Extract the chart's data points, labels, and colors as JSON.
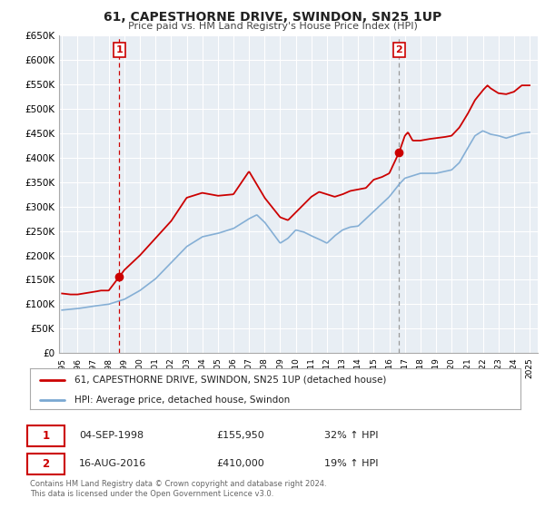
{
  "title": "61, CAPESTHORNE DRIVE, SWINDON, SN25 1UP",
  "subtitle": "Price paid vs. HM Land Registry's House Price Index (HPI)",
  "ylabel_ticks": [
    "£0",
    "£50K",
    "£100K",
    "£150K",
    "£200K",
    "£250K",
    "£300K",
    "£350K",
    "£400K",
    "£450K",
    "£500K",
    "£550K",
    "£600K",
    "£650K"
  ],
  "ytick_values": [
    0,
    50000,
    100000,
    150000,
    200000,
    250000,
    300000,
    350000,
    400000,
    450000,
    500000,
    550000,
    600000,
    650000
  ],
  "sale1_date": 1998.67,
  "sale1_price": 155950,
  "sale2_date": 2016.62,
  "sale2_price": 410000,
  "legend_line1": "61, CAPESTHORNE DRIVE, SWINDON, SN25 1UP (detached house)",
  "legend_line2": "HPI: Average price, detached house, Swindon",
  "footer": "Contains HM Land Registry data © Crown copyright and database right 2024.\nThis data is licensed under the Open Government Licence v3.0.",
  "line_color_red": "#cc0000",
  "line_color_blue": "#7aa8d2",
  "vline1_color": "#cc0000",
  "vline2_color": "#999999",
  "chart_bg": "#e8eef4",
  "background_color": "#ffffff",
  "grid_color": "#ffffff",
  "xmin": 1994.8,
  "xmax": 2025.5,
  "ymin": 0,
  "ymax": 650000,
  "hpi_keypoints": [
    [
      1995.0,
      88000
    ],
    [
      1996.0,
      91000
    ],
    [
      1997.0,
      96000
    ],
    [
      1998.0,
      100000
    ],
    [
      1999.0,
      110000
    ],
    [
      2000.0,
      128000
    ],
    [
      2001.0,
      152000
    ],
    [
      2002.0,
      185000
    ],
    [
      2003.0,
      218000
    ],
    [
      2004.0,
      238000
    ],
    [
      2005.0,
      245000
    ],
    [
      2006.0,
      255000
    ],
    [
      2007.0,
      275000
    ],
    [
      2007.5,
      283000
    ],
    [
      2008.0,
      268000
    ],
    [
      2009.0,
      225000
    ],
    [
      2009.5,
      235000
    ],
    [
      2010.0,
      252000
    ],
    [
      2010.5,
      248000
    ],
    [
      2011.0,
      240000
    ],
    [
      2011.5,
      233000
    ],
    [
      2012.0,
      225000
    ],
    [
      2012.5,
      240000
    ],
    [
      2013.0,
      252000
    ],
    [
      2013.5,
      258000
    ],
    [
      2014.0,
      260000
    ],
    [
      2015.0,
      290000
    ],
    [
      2016.0,
      320000
    ],
    [
      2016.62,
      345000
    ],
    [
      2017.0,
      358000
    ],
    [
      2018.0,
      368000
    ],
    [
      2019.0,
      368000
    ],
    [
      2020.0,
      375000
    ],
    [
      2020.5,
      390000
    ],
    [
      2021.0,
      418000
    ],
    [
      2021.5,
      445000
    ],
    [
      2022.0,
      455000
    ],
    [
      2022.5,
      448000
    ],
    [
      2023.0,
      445000
    ],
    [
      2023.5,
      440000
    ],
    [
      2024.0,
      445000
    ],
    [
      2024.5,
      450000
    ],
    [
      2025.0,
      452000
    ]
  ],
  "red_keypoints": [
    [
      1995.0,
      122000
    ],
    [
      1995.5,
      120000
    ],
    [
      1996.0,
      120000
    ],
    [
      1997.0,
      125000
    ],
    [
      1997.5,
      128000
    ],
    [
      1998.0,
      128000
    ],
    [
      1998.67,
      155950
    ],
    [
      1999.0,
      170000
    ],
    [
      2000.0,
      200000
    ],
    [
      2001.0,
      235000
    ],
    [
      2002.0,
      270000
    ],
    [
      2003.0,
      318000
    ],
    [
      2004.0,
      328000
    ],
    [
      2005.0,
      322000
    ],
    [
      2006.0,
      325000
    ],
    [
      2007.0,
      372000
    ],
    [
      2008.0,
      318000
    ],
    [
      2009.0,
      278000
    ],
    [
      2009.5,
      272000
    ],
    [
      2010.0,
      288000
    ],
    [
      2011.0,
      320000
    ],
    [
      2011.5,
      330000
    ],
    [
      2012.0,
      325000
    ],
    [
      2012.5,
      320000
    ],
    [
      2013.0,
      325000
    ],
    [
      2013.5,
      332000
    ],
    [
      2014.0,
      335000
    ],
    [
      2014.5,
      338000
    ],
    [
      2015.0,
      355000
    ],
    [
      2015.5,
      360000
    ],
    [
      2016.0,
      368000
    ],
    [
      2016.62,
      410000
    ],
    [
      2017.0,
      445000
    ],
    [
      2017.2,
      452000
    ],
    [
      2017.5,
      435000
    ],
    [
      2018.0,
      435000
    ],
    [
      2018.5,
      438000
    ],
    [
      2019.0,
      440000
    ],
    [
      2019.5,
      442000
    ],
    [
      2020.0,
      445000
    ],
    [
      2020.5,
      462000
    ],
    [
      2021.0,
      488000
    ],
    [
      2021.5,
      518000
    ],
    [
      2022.0,
      538000
    ],
    [
      2022.3,
      548000
    ],
    [
      2022.5,
      542000
    ],
    [
      2023.0,
      532000
    ],
    [
      2023.5,
      530000
    ],
    [
      2024.0,
      535000
    ],
    [
      2024.5,
      548000
    ],
    [
      2025.0,
      548000
    ]
  ]
}
